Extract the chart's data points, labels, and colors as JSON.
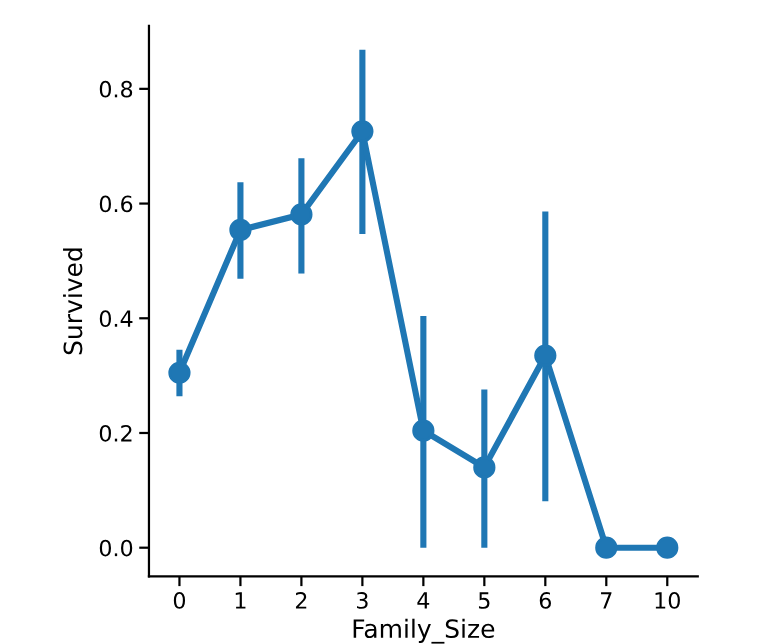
{
  "chart_data": {
    "type": "line",
    "xlabel": "Family_Size",
    "ylabel": "Survived",
    "categories": [
      "0",
      "1",
      "2",
      "3",
      "4",
      "5",
      "6",
      "7",
      "10"
    ],
    "values": [
      0.305,
      0.554,
      0.581,
      0.726,
      0.204,
      0.14,
      0.335,
      0,
      0
    ],
    "errors": [
      [
        0.264,
        0.345
      ],
      [
        0.469,
        0.637
      ],
      [
        0.478,
        0.679
      ],
      [
        0.547,
        0.868
      ],
      [
        0,
        0.404
      ],
      [
        0,
        0.276
      ],
      [
        0.081,
        0.586
      ],
      null,
      null
    ],
    "color": "#1f77b4",
    "marker": "circle",
    "line_style": "solid",
    "ylim": [
      -0.05,
      0.91
    ],
    "yticks": [
      {
        "value": 0,
        "label": "0.0"
      },
      0.2,
      0.4,
      0.6,
      0.8
    ],
    "grid": false
  }
}
